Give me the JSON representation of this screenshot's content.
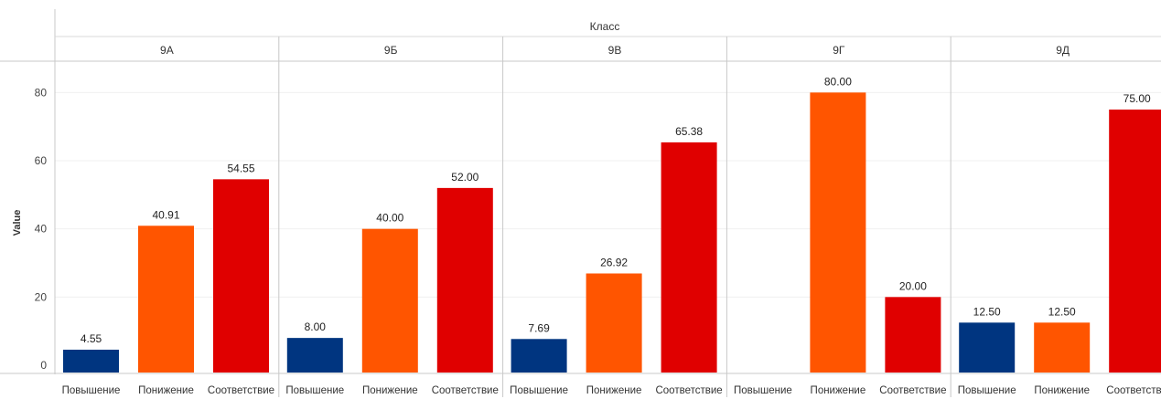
{
  "chart_data": {
    "type": "bar",
    "title": "Класс",
    "ylabel": "Value",
    "ylim": [
      0,
      90
    ],
    "yticks": [
      0,
      20,
      40,
      60,
      80
    ],
    "grid": true,
    "groups": [
      "9А",
      "9Б",
      "9В",
      "9Г",
      "9Д"
    ],
    "categories": [
      "Повышение",
      "Понижение",
      "Соответствие"
    ],
    "category_colors": {
      "Повышение": "#003580",
      "Понижение": "#ff5500",
      "Соответствие": "#e00000"
    },
    "data": [
      {
        "group": "9А",
        "values": [
          4.55,
          40.91,
          54.55
        ],
        "labels": [
          "4.55",
          "40.91",
          "54.55"
        ]
      },
      {
        "group": "9Б",
        "values": [
          8.0,
          40.0,
          52.0
        ],
        "labels": [
          "8.00",
          "40.00",
          "52.00"
        ]
      },
      {
        "group": "9В",
        "values": [
          7.69,
          26.92,
          65.38
        ],
        "labels": [
          "7.69",
          "26.92",
          "65.38"
        ]
      },
      {
        "group": "9Г",
        "values": [
          null,
          80.0,
          20.0
        ],
        "labels": [
          "",
          "80.00",
          "20.00"
        ]
      },
      {
        "group": "9Д",
        "values": [
          12.5,
          12.5,
          75.0
        ],
        "labels": [
          "12.50",
          "12.50",
          "75.00"
        ]
      }
    ],
    "x_tick_labels": [
      "Повышение",
      "Понижение",
      "Соответствие",
      "Повышение",
      "Понижение",
      "Соответствие",
      "Повышение",
      "Понижение",
      "Соответствие",
      "Повышение",
      "Понижение",
      "Соответствие",
      "Повышение",
      "Понижение",
      "Соответстви"
    ]
  }
}
